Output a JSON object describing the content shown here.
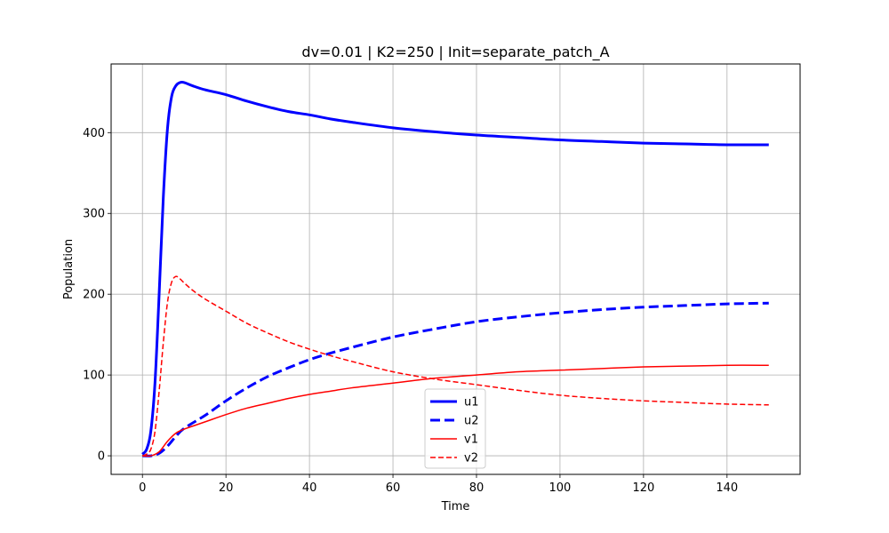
{
  "chart_data": {
    "type": "line",
    "title": "dv=0.01 | K2=250 | Init=separate_patch_A",
    "xlabel": "Time",
    "ylabel": "Population",
    "xlim": [
      -7.5,
      157.5
    ],
    "ylim": [
      -23,
      485
    ],
    "xticks": [
      0,
      20,
      40,
      60,
      80,
      100,
      120,
      140
    ],
    "yticks": [
      0,
      100,
      200,
      300,
      400
    ],
    "grid": true,
    "legend_position": "lower-center",
    "series": [
      {
        "name": "u1",
        "color": "#0000ff",
        "linestyle": "solid",
        "linewidth": "thick",
        "x": [
          0,
          1,
          2,
          3,
          4,
          5,
          6,
          7,
          8,
          9,
          10,
          12,
          15,
          20,
          25,
          30,
          35,
          40,
          45,
          50,
          60,
          70,
          80,
          90,
          100,
          110,
          120,
          130,
          140,
          150
        ],
        "y": [
          2,
          8,
          30,
          90,
          200,
          320,
          405,
          445,
          458,
          462,
          462,
          458,
          453,
          447,
          439,
          432,
          426,
          422,
          417,
          413,
          406,
          401,
          397,
          394,
          391,
          389,
          387,
          386,
          385,
          385
        ]
      },
      {
        "name": "u2",
        "color": "#0000ff",
        "linestyle": "dashed",
        "linewidth": "thick",
        "x": [
          0,
          2,
          4,
          6,
          8,
          10,
          15,
          20,
          25,
          30,
          35,
          40,
          45,
          50,
          60,
          70,
          80,
          90,
          100,
          110,
          120,
          130,
          140,
          150
        ],
        "y": [
          0,
          0,
          3,
          12,
          24,
          34,
          50,
          68,
          84,
          98,
          109,
          119,
          127,
          134,
          147,
          157,
          166,
          172,
          177,
          181,
          184,
          186,
          188,
          189
        ]
      },
      {
        "name": "v1",
        "color": "#ff0000",
        "linestyle": "solid",
        "linewidth": "thin",
        "x": [
          0,
          2,
          4,
          6,
          8,
          10,
          15,
          20,
          25,
          30,
          35,
          40,
          45,
          50,
          60,
          70,
          80,
          90,
          100,
          110,
          120,
          130,
          140,
          150
        ],
        "y": [
          0,
          0,
          5,
          18,
          28,
          33,
          42,
          51,
          59,
          65,
          71,
          76,
          80,
          84,
          90,
          96,
          100,
          104,
          106,
          108,
          110,
          111,
          112,
          112
        ]
      },
      {
        "name": "v2",
        "color": "#ff0000",
        "linestyle": "dashed",
        "linewidth": "thin",
        "x": [
          0,
          1,
          2,
          3,
          4,
          5,
          6,
          7,
          8,
          9,
          10,
          12,
          15,
          20,
          25,
          30,
          35,
          40,
          45,
          50,
          60,
          70,
          80,
          90,
          100,
          110,
          120,
          130,
          140,
          150
        ],
        "y": [
          0,
          2,
          8,
          30,
          80,
          140,
          190,
          215,
          222,
          219,
          214,
          205,
          194,
          179,
          164,
          152,
          141,
          132,
          124,
          117,
          104,
          95,
          88,
          81,
          75,
          71,
          68,
          66,
          64,
          63
        ]
      }
    ]
  }
}
